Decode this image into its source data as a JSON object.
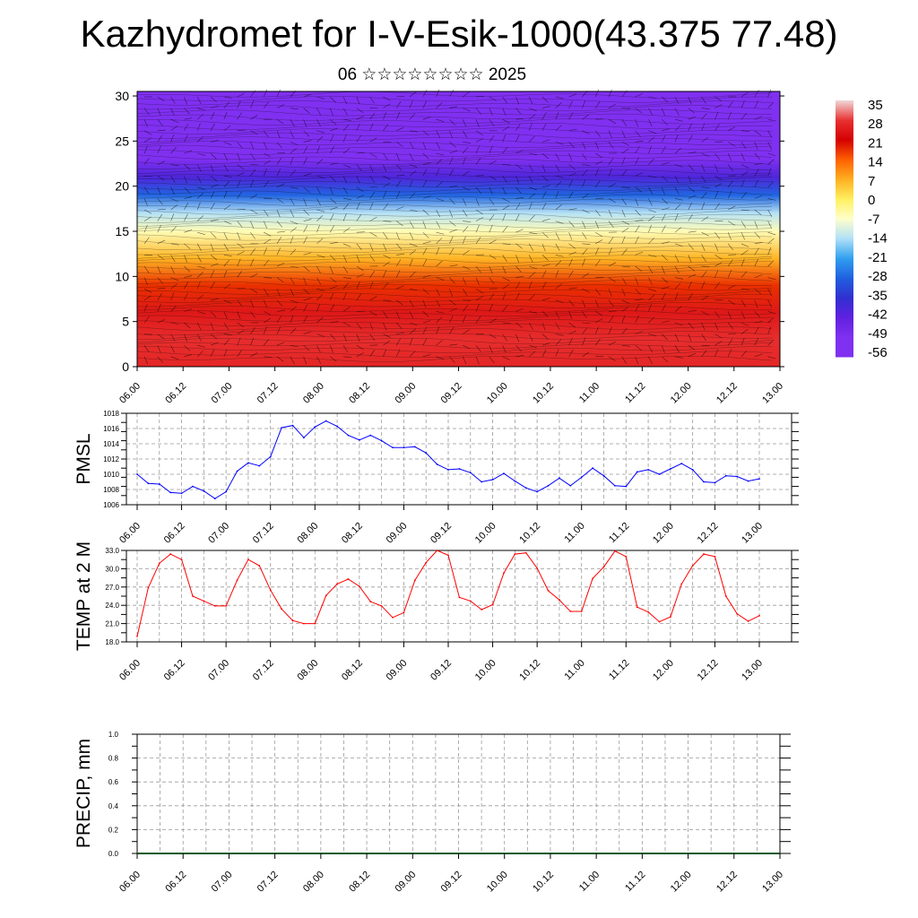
{
  "title": "Kazhydromet for I-V-Esik-1000(43.375 77.48)",
  "subtitle": "06 ☆☆☆☆☆☆☆☆ 2025",
  "time_ticks": [
    "06.00",
    "06.12",
    "07.00",
    "07.12",
    "08.00",
    "08.12",
    "09.00",
    "09.12",
    "10.00",
    "10.12",
    "11.00",
    "11.12",
    "12.00",
    "12.12",
    "13.00"
  ],
  "chart_data": [
    {
      "type": "heatmap",
      "name": "vertical-section",
      "x": [
        "06.00",
        "06.12",
        "07.00",
        "07.12",
        "08.00",
        "08.12",
        "09.00",
        "09.12",
        "10.00",
        "10.12",
        "11.00",
        "11.12",
        "12.00",
        "12.12",
        "13.00"
      ],
      "yticks": [
        0,
        5,
        10,
        15,
        20,
        25,
        30
      ],
      "ylim": [
        0,
        30.5
      ],
      "colorbar_labels": [
        "35",
        "28",
        "21",
        "14",
        "7",
        "0",
        "-7",
        "-14",
        "-21",
        "-28",
        "-35",
        "-42",
        "-49",
        "-56"
      ],
      "colors": [
        "#f0d8d8",
        "#e83030",
        "#d40000",
        "#ff6000",
        "#ffb020",
        "#fff060",
        "#ffffcc",
        "#b0e0f8",
        "#30a0f0",
        "#2060e0",
        "#3030d0",
        "#6020e0",
        "#8030f0"
      ],
      "temperature_profile": [
        [
          0,
          30
        ],
        [
          3,
          31
        ],
        [
          6,
          28
        ],
        [
          9,
          21
        ],
        [
          12,
          10
        ],
        [
          15,
          -2
        ],
        [
          17,
          -10
        ],
        [
          19,
          -24
        ],
        [
          21,
          -36
        ],
        [
          23,
          -50
        ],
        [
          25,
          -56
        ],
        [
          27,
          -58
        ],
        [
          30,
          -60
        ]
      ]
    },
    {
      "type": "line",
      "name": "pmsl",
      "ylabel": "PMSL",
      "ylim": [
        1006,
        1018
      ],
      "yticks": [
        "1006",
        "1008",
        "1010",
        "1012",
        "1014",
        "1016",
        "1018"
      ],
      "x": [
        "06.00",
        "06.03",
        "06.06",
        "06.09",
        "06.12",
        "06.15",
        "06.18",
        "06.21",
        "07.00",
        "07.03",
        "07.06",
        "07.09",
        "07.12",
        "07.15",
        "07.18",
        "07.21",
        "08.00",
        "08.03",
        "08.06",
        "08.09",
        "08.12",
        "08.15",
        "08.18",
        "08.21",
        "09.00",
        "09.03",
        "09.06",
        "09.09",
        "09.12",
        "09.15",
        "09.18",
        "09.21",
        "10.00",
        "10.03",
        "10.06",
        "10.09",
        "10.12",
        "10.15",
        "10.18",
        "10.21",
        "11.00",
        "11.03",
        "11.06",
        "11.09",
        "11.12",
        "11.15",
        "11.18",
        "11.21",
        "12.00",
        "12.03",
        "12.06",
        "12.09",
        "12.12",
        "12.15",
        "12.18",
        "12.21",
        "13.00"
      ],
      "series": [
        {
          "color": "#0000ff",
          "values": [
            1010.0,
            1008.8,
            1008.7,
            1007.6,
            1007.5,
            1008.4,
            1007.8,
            1006.8,
            1007.7,
            1010.4,
            1011.5,
            1011.1,
            1012.3,
            1016.1,
            1016.4,
            1014.8,
            1016.2,
            1017.0,
            1016.3,
            1015.1,
            1014.5,
            1015.1,
            1014.4,
            1013.5,
            1013.5,
            1013.6,
            1012.8,
            1011.3,
            1010.6,
            1010.7,
            1010.2,
            1009.0,
            1009.3,
            1010.1,
            1009.1,
            1008.2,
            1007.7,
            1008.5,
            1009.5,
            1008.5,
            1009.6,
            1010.8,
            1009.8,
            1008.5,
            1008.4,
            1010.3,
            1010.6,
            1010.0,
            1010.7,
            1011.4,
            1010.6,
            1009.0,
            1008.9,
            1009.8,
            1009.7,
            1009.1,
            1009.4
          ]
        }
      ]
    },
    {
      "type": "line",
      "name": "temp-2m",
      "ylabel": "TEMP at 2 M",
      "ylim": [
        18,
        33
      ],
      "yticks": [
        "18.0",
        "21.0",
        "24.0",
        "27.0",
        "30.0",
        "33.0"
      ],
      "x": [
        "06.00",
        "06.03",
        "06.06",
        "06.09",
        "06.12",
        "06.15",
        "06.18",
        "06.21",
        "07.00",
        "07.03",
        "07.06",
        "07.09",
        "07.12",
        "07.15",
        "07.18",
        "07.21",
        "08.00",
        "08.03",
        "08.06",
        "08.09",
        "08.12",
        "08.15",
        "08.18",
        "08.21",
        "09.00",
        "09.03",
        "09.06",
        "09.09",
        "09.12",
        "09.15",
        "09.18",
        "09.21",
        "10.00",
        "10.03",
        "10.06",
        "10.09",
        "10.12",
        "10.15",
        "10.18",
        "10.21",
        "11.00",
        "11.03",
        "11.06",
        "11.09",
        "11.12",
        "11.15",
        "11.18",
        "11.21",
        "12.00",
        "12.03",
        "12.06",
        "12.09",
        "12.12",
        "12.15",
        "12.18",
        "12.21",
        "13.00"
      ],
      "series": [
        {
          "color": "#ff0000",
          "values": [
            18.9,
            26.9,
            30.9,
            32.4,
            31.5,
            25.5,
            24.7,
            23.9,
            23.9,
            28.1,
            31.5,
            30.5,
            26.5,
            23.4,
            21.5,
            21.0,
            21.0,
            25.6,
            27.5,
            28.3,
            27.1,
            24.6,
            23.9,
            22.0,
            22.8,
            28.1,
            31.0,
            33.0,
            32.2,
            25.3,
            24.7,
            23.3,
            24.1,
            29.3,
            32.4,
            32.6,
            30.1,
            26.4,
            24.9,
            23.0,
            23.0,
            28.4,
            30.3,
            32.9,
            32.0,
            23.7,
            22.9,
            21.3,
            22.1,
            27.5,
            30.5,
            32.4,
            32.0,
            25.5,
            22.6,
            21.4,
            22.3
          ]
        }
      ]
    },
    {
      "type": "bar",
      "name": "precip",
      "ylabel": "PRECIP, mm",
      "ylim": [
        0,
        1
      ],
      "yticks": [
        "0.0",
        "0.2",
        "0.4",
        "0.6",
        "0.8",
        "1.0"
      ],
      "values": [
        0,
        0,
        0,
        0,
        0,
        0,
        0,
        0,
        0,
        0,
        0,
        0,
        0,
        0,
        0,
        0,
        0,
        0,
        0,
        0,
        0,
        0,
        0,
        0,
        0,
        0,
        0,
        0,
        0,
        0,
        0,
        0,
        0,
        0,
        0,
        0,
        0,
        0,
        0,
        0,
        0,
        0,
        0,
        0,
        0,
        0,
        0,
        0,
        0,
        0,
        0,
        0,
        0,
        0,
        0,
        0,
        0
      ]
    }
  ]
}
